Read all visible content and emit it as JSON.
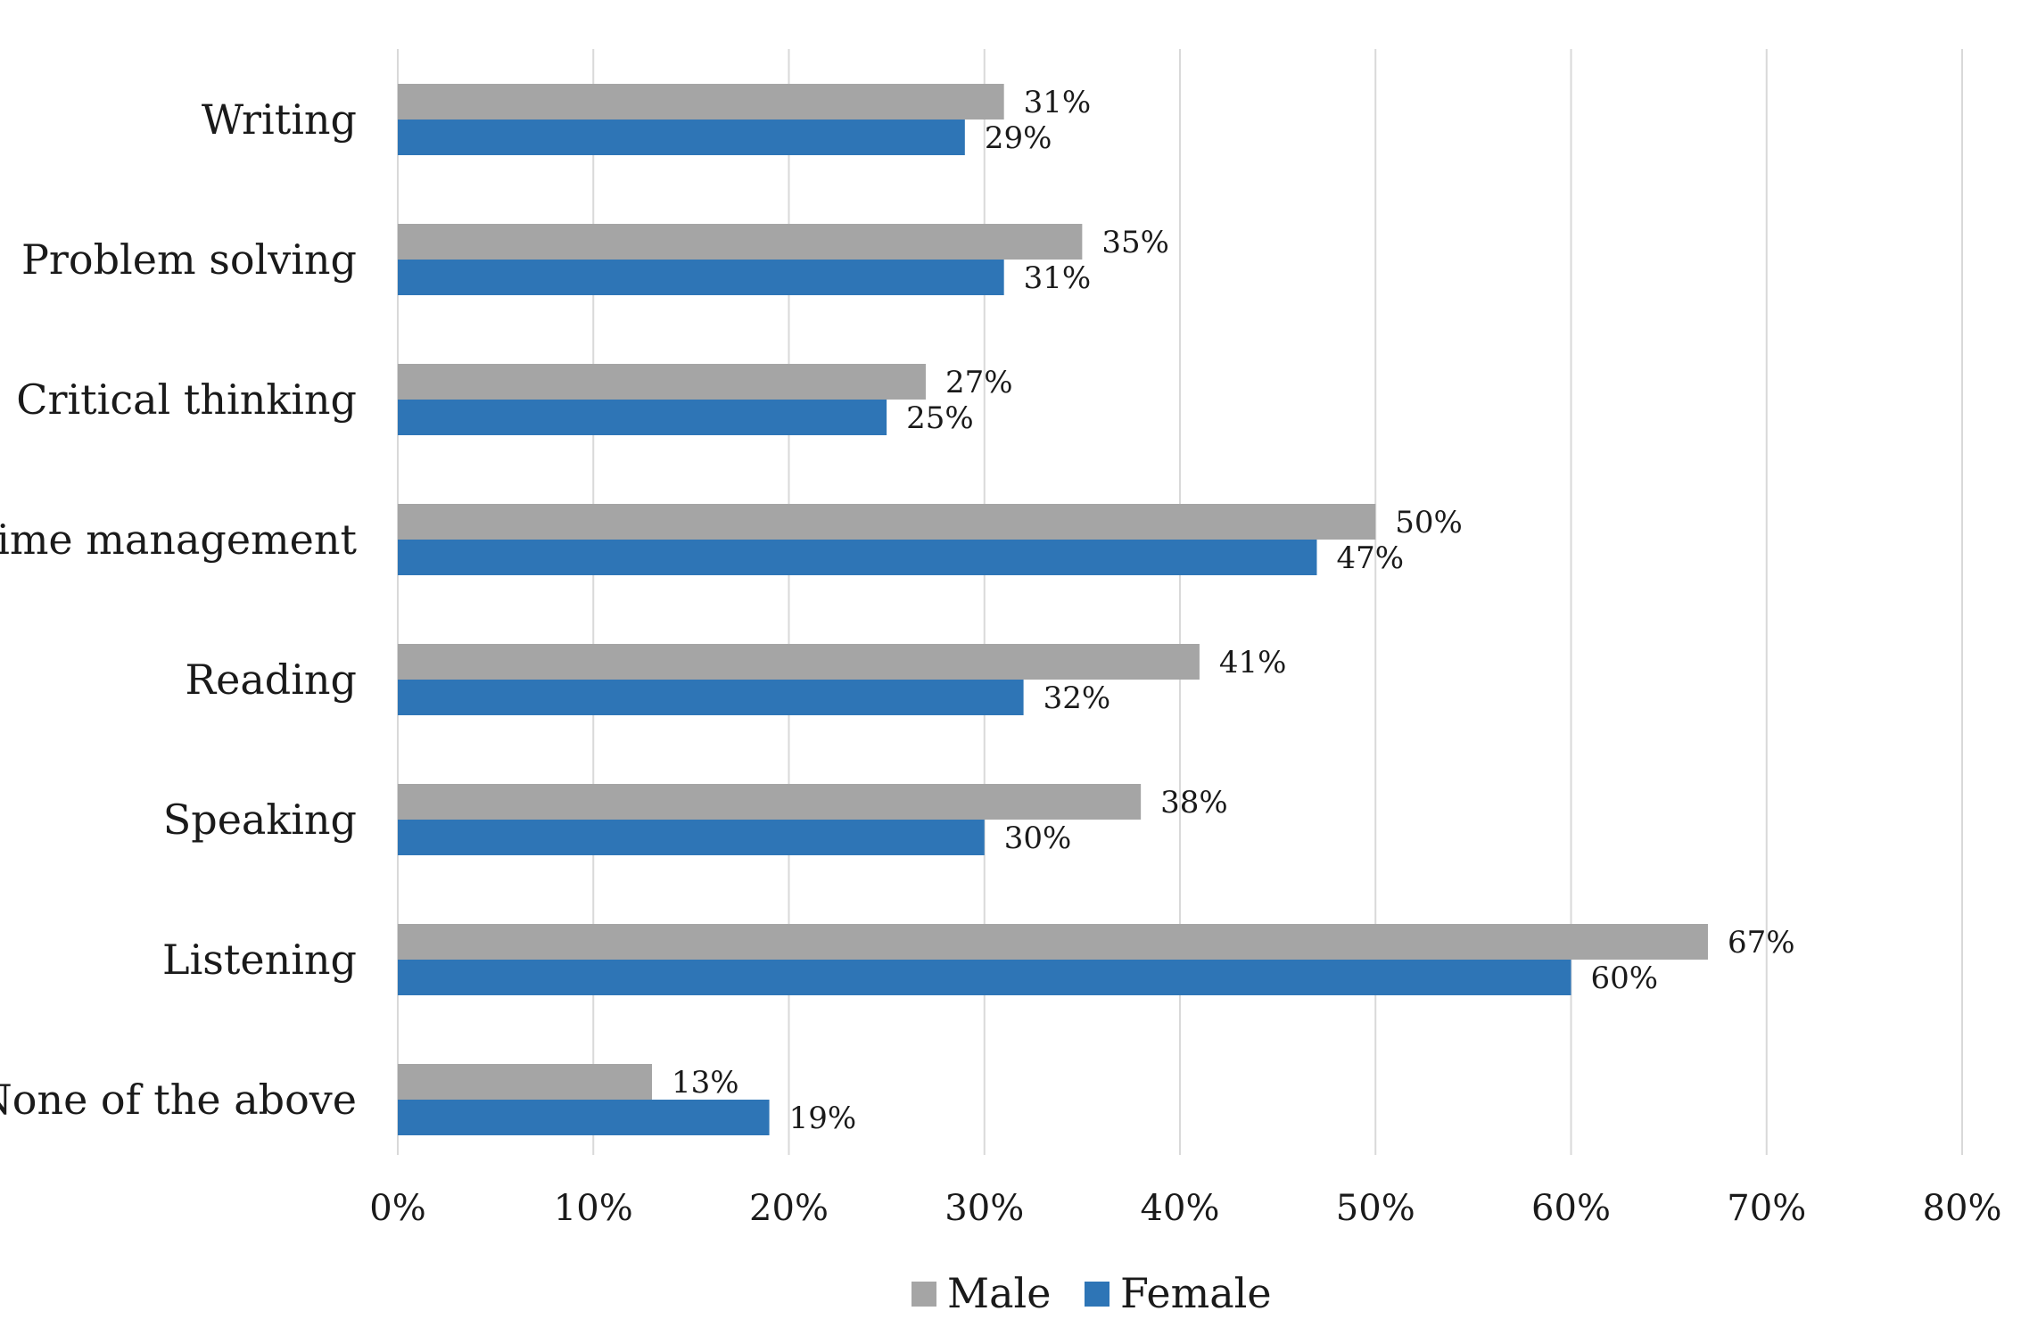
{
  "chart_data": {
    "type": "bar",
    "orientation": "horizontal",
    "title": "",
    "xlabel": "",
    "ylabel": "",
    "xlim": [
      0,
      80
    ],
    "grid": true,
    "legend_position": "bottom",
    "categories": [
      "Writing",
      "Problem solving",
      "Critical thinking",
      "Time management",
      "Reading",
      "Speaking",
      "Listening",
      "None of the above"
    ],
    "x_ticks": [
      0,
      10,
      20,
      30,
      40,
      50,
      60,
      70,
      80
    ],
    "x_tick_labels": [
      "0%",
      "10%",
      "20%",
      "30%",
      "40%",
      "50%",
      "60%",
      "70%",
      "80%"
    ],
    "series": [
      {
        "name": "Male",
        "color": "#a5a5a5",
        "values": [
          31,
          35,
          27,
          50,
          41,
          38,
          67,
          13
        ],
        "labels": [
          "31%",
          "35%",
          "27%",
          "50%",
          "41%",
          "38%",
          "67%",
          "13%"
        ]
      },
      {
        "name": "Female",
        "color": "#2e75b6",
        "values": [
          29,
          31,
          25,
          47,
          32,
          30,
          60,
          19
        ],
        "labels": [
          "29%",
          "31%",
          "25%",
          "47%",
          "32%",
          "30%",
          "60%",
          "19%"
        ]
      }
    ]
  }
}
